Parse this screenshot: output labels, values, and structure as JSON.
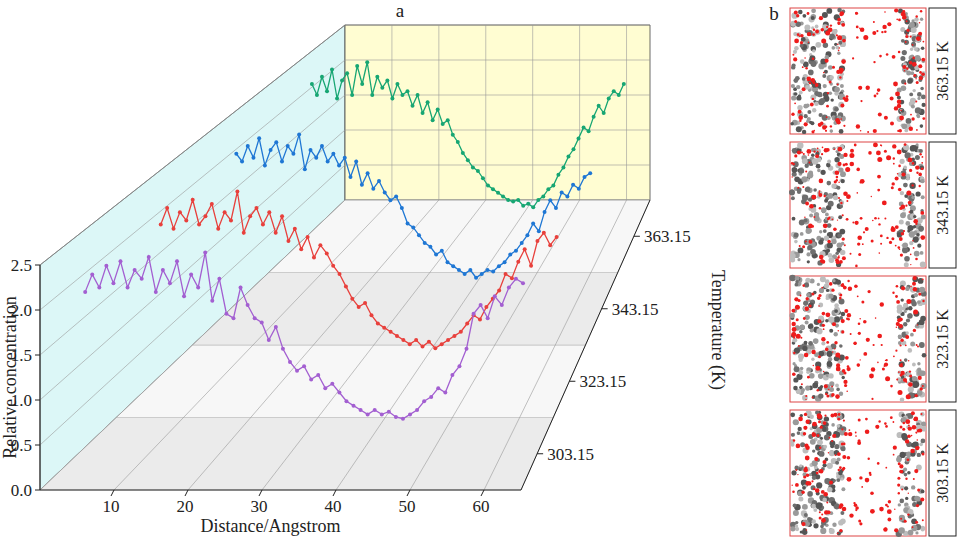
{
  "chart_data": {
    "type": "line",
    "panel_label": "a",
    "x_label": "Distance/Angstrom",
    "y_label": "Relative concentration",
    "z_label": "Temperature (K)",
    "x": [
      1,
      2,
      3,
      4,
      5,
      6,
      7,
      8,
      9,
      10,
      11,
      12,
      13,
      14,
      15,
      16,
      17,
      18,
      19,
      20,
      21,
      22,
      23,
      24,
      25,
      26,
      27,
      28,
      29,
      30,
      31,
      32,
      33,
      34,
      35,
      36,
      37,
      38,
      39,
      40,
      41,
      42,
      43,
      44,
      45,
      46,
      47,
      48,
      49,
      50,
      51,
      52,
      53,
      54,
      55,
      56,
      57,
      58,
      59,
      60,
      61,
      62,
      63
    ],
    "xlim": [
      0,
      65
    ],
    "xticks": [
      10,
      20,
      30,
      40,
      50,
      60
    ],
    "ylim": [
      0,
      2.5
    ],
    "yticks": [
      {
        "value": 0,
        "label": "0.0"
      },
      {
        "value": 0.5,
        "label": "0.5"
      },
      {
        "value": 1,
        "label": "1.0"
      },
      {
        "value": 1.5,
        "label": "1.5"
      },
      {
        "value": 2,
        "label": "2.0"
      },
      {
        "value": 2.5,
        "label": "2.5"
      }
    ],
    "grid": true,
    "marker": "circle",
    "series": [
      {
        "name": "303.15",
        "color": "#a35fd1",
        "values": [
          1.85,
          2.05,
          1.9,
          2.15,
          1.95,
          2.2,
          1.9,
          2.1,
          2.0,
          2.25,
          1.85,
          2.1,
          1.95,
          2.2,
          1.8,
          2.05,
          1.9,
          2.3,
          1.75,
          2.0,
          1.6,
          1.55,
          1.9,
          1.7,
          1.55,
          1.5,
          1.3,
          1.45,
          1.2,
          1.05,
          0.95,
          1.0,
          0.85,
          0.9,
          0.75,
          0.8,
          0.7,
          0.6,
          0.55,
          0.5,
          0.45,
          0.5,
          0.45,
          0.48,
          0.42,
          0.4,
          0.45,
          0.5,
          0.6,
          0.65,
          0.75,
          0.7,
          0.9,
          1.0,
          1.2,
          1.6,
          1.7,
          1.55,
          1.8,
          1.7,
          1.9,
          2.0,
          1.95
        ]
      },
      {
        "name": "323.15",
        "color": "#e8403c",
        "values": [
          1.9,
          2.1,
          1.85,
          2.05,
          1.95,
          2.2,
          1.9,
          2.0,
          2.15,
          1.85,
          2.05,
          1.95,
          2.3,
          1.8,
          2.0,
          2.1,
          1.9,
          2.05,
          1.8,
          2.0,
          1.7,
          1.85,
          1.6,
          1.75,
          1.5,
          1.65,
          1.55,
          1.4,
          1.3,
          1.15,
          1.0,
          0.9,
          0.95,
          0.8,
          0.7,
          0.65,
          0.6,
          0.55,
          0.5,
          0.45,
          0.5,
          0.42,
          0.48,
          0.4,
          0.45,
          0.5,
          0.55,
          0.6,
          0.7,
          0.8,
          0.75,
          0.9,
          1.0,
          1.1,
          1.3,
          1.25,
          1.45,
          1.6,
          1.4,
          1.7,
          1.8,
          1.65,
          1.75
        ]
      },
      {
        "name": "343.15",
        "color": "#1f77d4",
        "values": [
          2.0,
          1.9,
          2.1,
          1.95,
          2.2,
          1.85,
          2.05,
          2.15,
          1.9,
          2.1,
          2.0,
          2.25,
          1.8,
          2.05,
          1.95,
          2.1,
          1.9,
          2.0,
          1.85,
          1.95,
          1.7,
          1.9,
          1.6,
          1.75,
          1.55,
          1.65,
          1.5,
          1.4,
          1.45,
          1.3,
          1.1,
          1.05,
          0.95,
          0.85,
          0.8,
          0.7,
          0.75,
          0.6,
          0.55,
          0.5,
          0.45,
          0.5,
          0.4,
          0.45,
          0.5,
          0.48,
          0.55,
          0.6,
          0.7,
          0.75,
          0.85,
          0.95,
          1.1,
          1.0,
          1.25,
          1.4,
          1.3,
          1.5,
          1.45,
          1.6,
          1.55,
          1.7,
          1.75
        ]
      },
      {
        "name": "363.15",
        "color": "#17a673",
        "values": [
          2.1,
          1.95,
          2.2,
          2.0,
          2.3,
          1.9,
          2.15,
          2.25,
          1.95,
          2.35,
          2.1,
          2.4,
          1.95,
          2.2,
          2.05,
          2.15,
          1.9,
          2.1,
          1.95,
          2.0,
          1.8,
          1.95,
          1.7,
          1.85,
          1.6,
          1.75,
          1.55,
          1.6,
          1.4,
          1.3,
          1.15,
          1.05,
          0.95,
          0.9,
          0.8,
          0.7,
          0.65,
          0.6,
          0.55,
          0.5,
          0.48,
          0.5,
          0.42,
          0.45,
          0.4,
          0.5,
          0.55,
          0.65,
          0.7,
          0.85,
          0.95,
          1.1,
          1.2,
          1.35,
          1.5,
          1.45,
          1.65,
          1.8,
          1.7,
          1.9,
          2.0,
          1.95,
          2.1
        ]
      }
    ]
  },
  "panel_b": {
    "label": "b",
    "snapshots": [
      "363.15 K",
      "343.15 K",
      "323.15 K",
      "303.15 K"
    ]
  }
}
